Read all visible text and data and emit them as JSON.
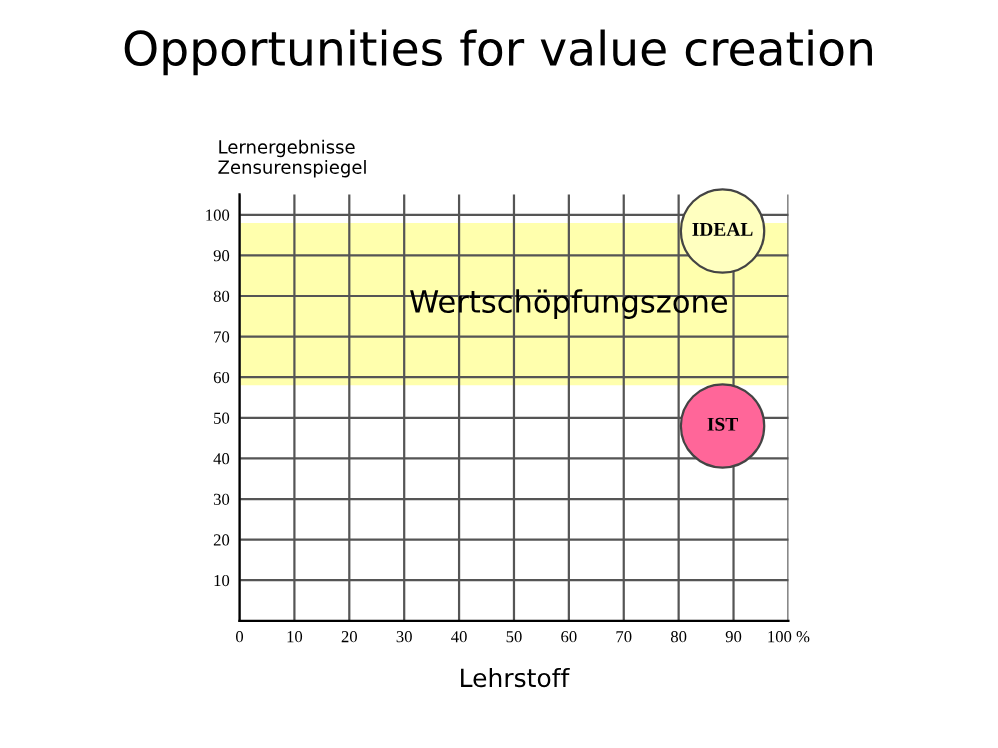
{
  "chart_data": {
    "type": "bubble",
    "title": "Opportunities for value creation",
    "xlabel": "Lehrstoff",
    "ylabel": "Lernergebnisse\nZensurenspiegel",
    "x": [
      88,
      88
    ],
    "series": [
      {
        "color": "#ffffc0",
        "values": [
          96,
          null
        ],
        "sizes": [
          1,
          null
        ]
      },
      {
        "color": "#ff6699",
        "values": [
          null,
          48
        ],
        "sizes": [
          null,
          1
        ]
      }
    ],
    "annotations": [
      {
        "text": "IDEAL",
        "x": 88,
        "y": 96
      },
      {
        "text": "IST",
        "x": 88,
        "y": 48
      }
    ],
    "bands": [
      {
        "axis": "y",
        "from": 58,
        "to": 98,
        "label": "Wertschöpfungszone",
        "color": "#ffff99"
      }
    ],
    "xlim": [
      0,
      100
    ],
    "ylim": [
      0,
      105
    ],
    "xticks": [
      0,
      10,
      20,
      30,
      40,
      50,
      60,
      70,
      80,
      90,
      {
        "value": 100,
        "label": "100 %"
      }
    ],
    "yticks": [
      10,
      20,
      30,
      40,
      50,
      60,
      70,
      80,
      90,
      100
    ],
    "grid": true
  }
}
